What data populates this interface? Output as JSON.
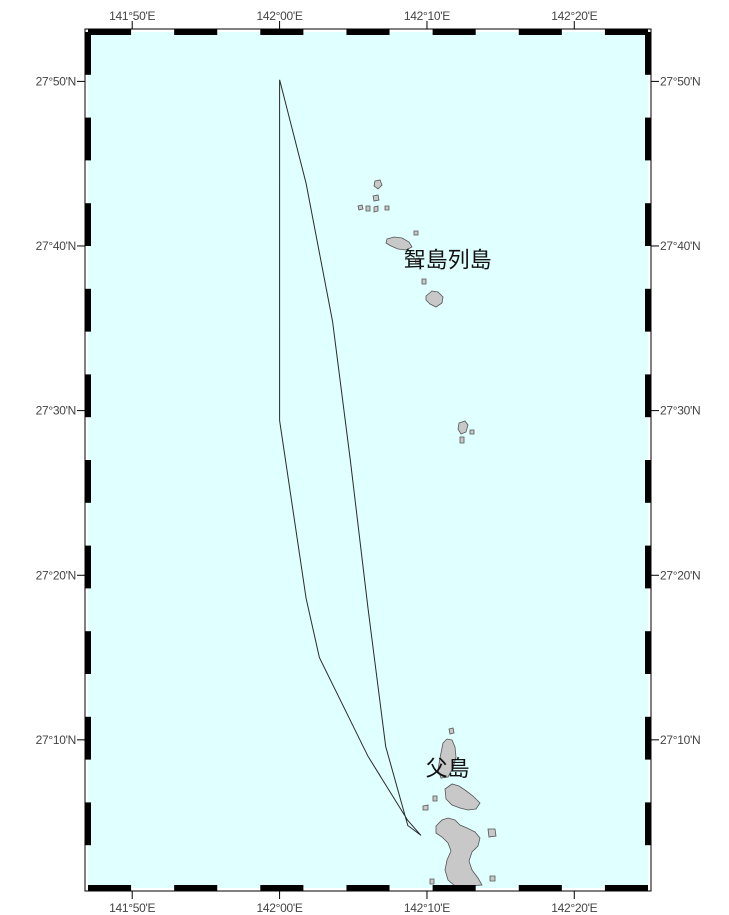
{
  "map": {
    "ocean_color": "#e0ffff",
    "land_color": "#c8c8c8",
    "route_color": "#2a2a2a",
    "lon_ticks": [
      {
        "value": 141.8333,
        "label": "141°50'E"
      },
      {
        "value": 142.0,
        "label": "142°00'E"
      },
      {
        "value": 142.1667,
        "label": "142°10'E"
      },
      {
        "value": 142.3333,
        "label": "142°20'E"
      }
    ],
    "lat_ticks": [
      {
        "value": 27.8333,
        "label": "27°50'N"
      },
      {
        "value": 27.6667,
        "label": "27°40'N"
      },
      {
        "value": 27.5,
        "label": "27°30'N"
      },
      {
        "value": 27.3333,
        "label": "27°20'N"
      },
      {
        "value": 27.1667,
        "label": "27°10'N"
      }
    ],
    "places": [
      {
        "name": "聟島列島",
        "lon": 142.19,
        "lat": 27.645
      },
      {
        "name": "父島",
        "lon": 142.19,
        "lat": 27.13
      }
    ],
    "route": [
      [
        142.0,
        27.835
      ],
      [
        142.03,
        27.73
      ],
      [
        142.06,
        27.59
      ],
      [
        142.08,
        27.45
      ],
      [
        142.1,
        27.3
      ],
      [
        142.12,
        27.16
      ],
      [
        142.145,
        27.08
      ],
      [
        142.16,
        27.07
      ],
      [
        142.145,
        27.085
      ],
      [
        142.1,
        27.15
      ],
      [
        142.045,
        27.25
      ],
      [
        142.03,
        27.31
      ],
      [
        142.0,
        27.49
      ],
      [
        142.0,
        27.835
      ]
    ]
  }
}
